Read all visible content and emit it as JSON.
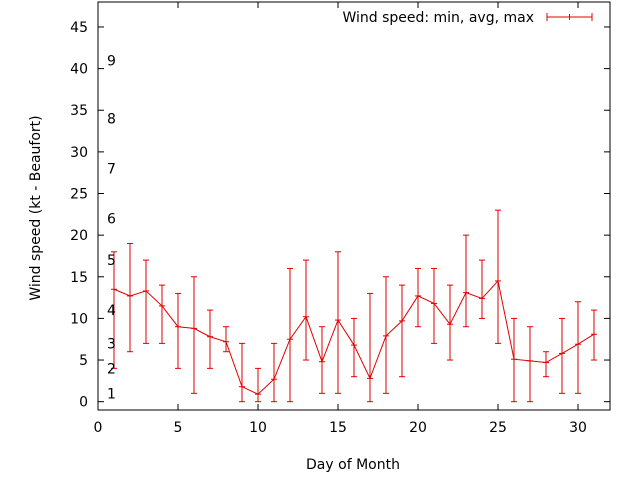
{
  "chart_data": {
    "type": "line",
    "xlabel": "Day of Month",
    "ylabel": "Wind speed (kt - Beaufort)",
    "xlim": [
      0,
      32
    ],
    "ylim": [
      -1,
      48
    ],
    "x_ticks": [
      "0",
      "5",
      "10",
      "15",
      "20",
      "25",
      "30"
    ],
    "y_ticks": [
      "0",
      "5",
      "10",
      "15",
      "20",
      "25",
      "30",
      "35",
      "40",
      "45"
    ],
    "grid": false,
    "legend_position": "top-right",
    "beaufort_labels": [
      {
        "label": "1",
        "y": 1
      },
      {
        "label": "2",
        "y": 4
      },
      {
        "label": "3",
        "y": 7
      },
      {
        "label": "4",
        "y": 11
      },
      {
        "label": "5",
        "y": 17
      },
      {
        "label": "6",
        "y": 22
      },
      {
        "label": "7",
        "y": 28
      },
      {
        "label": "8",
        "y": 34
      },
      {
        "label": "9",
        "y": 41
      }
    ],
    "series": [
      {
        "name": "Wind speed: min, avg, max",
        "color": "#e00000",
        "x": [
          1,
          2,
          3,
          4,
          5,
          6,
          7,
          8,
          9,
          10,
          11,
          12,
          13,
          14,
          15,
          16,
          17,
          18,
          19,
          20,
          21,
          22,
          23,
          24,
          25,
          26,
          27,
          28,
          29,
          30,
          31
        ],
        "avg": [
          13.5,
          12.7,
          13.3,
          11.5,
          9,
          8.8,
          7.8,
          7.2,
          1.8,
          0.9,
          2.7,
          7.5,
          10.2,
          4.8,
          9.8,
          6.8,
          2.8,
          7.9,
          9.7,
          12.7,
          11.8,
          9.3,
          13.1,
          12.4,
          14.5,
          5.1,
          4.9,
          4.7,
          5.8,
          6.9,
          8.1
        ],
        "min": [
          4,
          6,
          7,
          7,
          4,
          1,
          4,
          6,
          0,
          0,
          0,
          0,
          5,
          1,
          1,
          3,
          0,
          1,
          3,
          9,
          7,
          5,
          9,
          10,
          7,
          0,
          0,
          3,
          1,
          1,
          5
        ],
        "max": [
          18,
          19,
          17,
          14,
          13,
          15,
          11,
          9,
          7,
          4,
          7,
          16,
          17,
          9,
          18,
          10,
          13,
          15,
          14,
          16,
          16,
          14,
          20,
          17,
          23,
          10,
          9,
          6,
          10,
          12,
          11
        ]
      }
    ]
  }
}
